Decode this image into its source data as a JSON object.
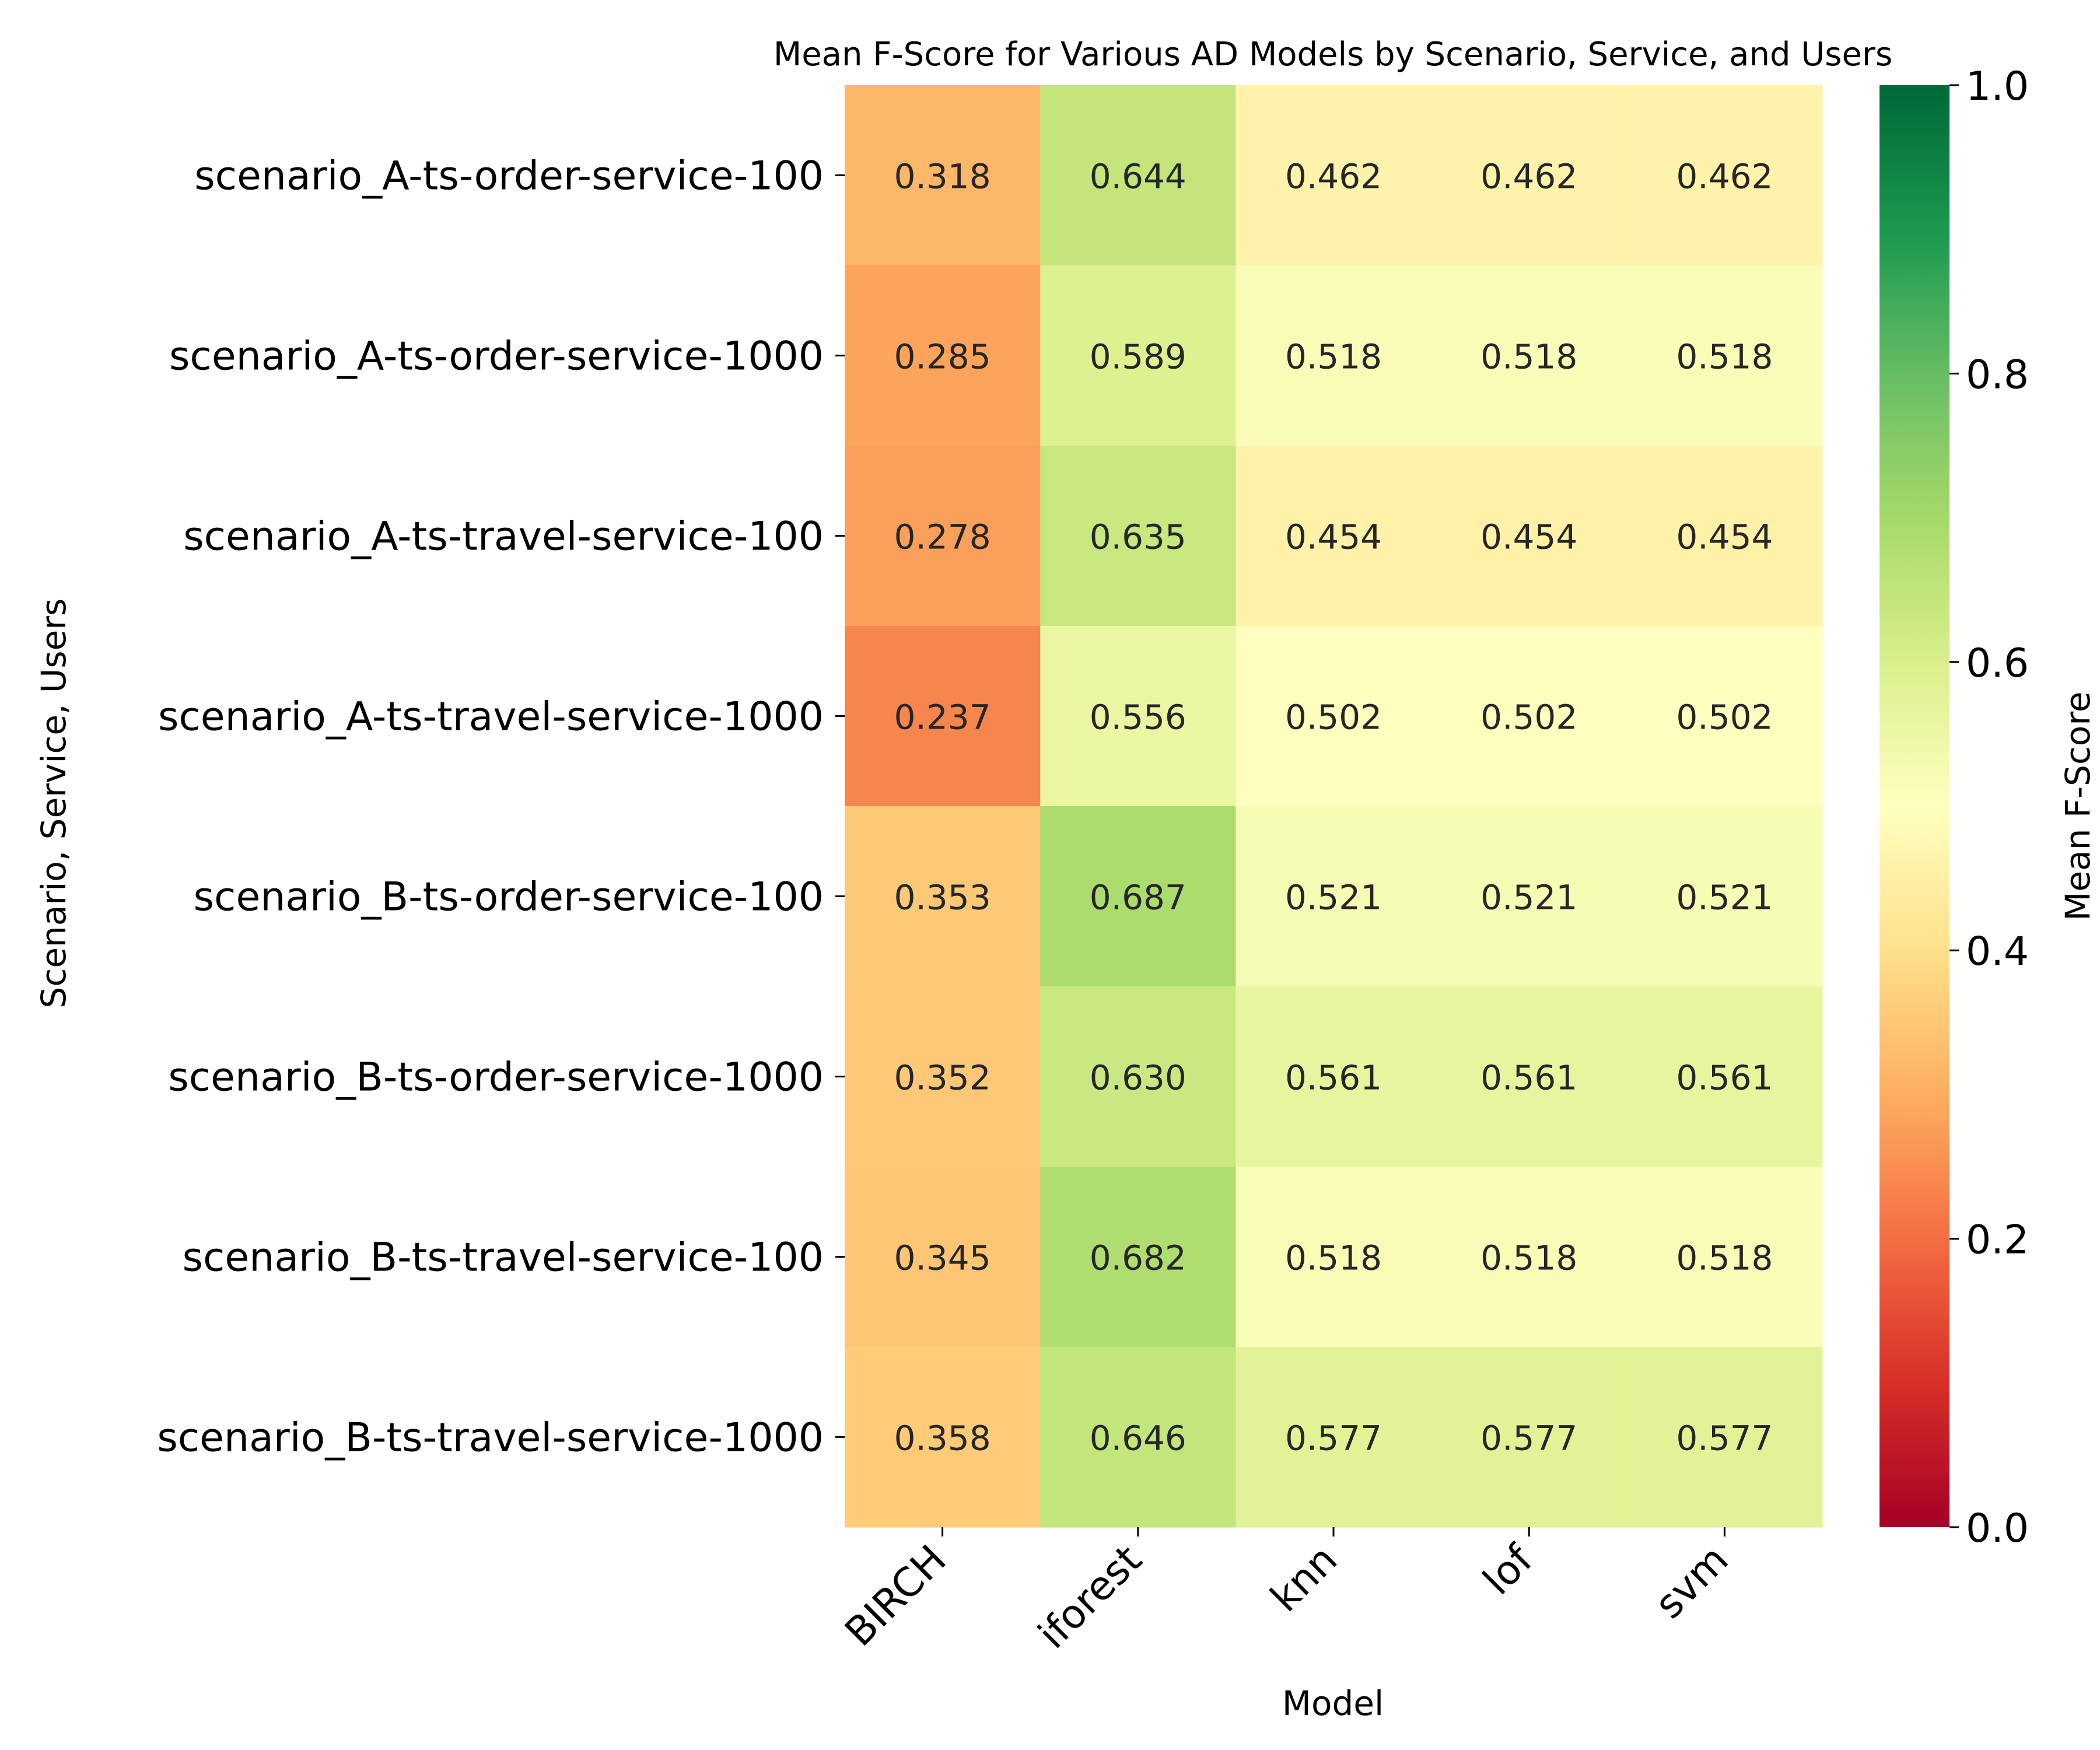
{
  "chart_data": {
    "type": "heatmap",
    "title": "Mean F-Score for Various AD Models by Scenario, Service, and Users",
    "xlabel": "Model",
    "ylabel": "Scenario, Service, Users",
    "x_categories": [
      "BIRCH",
      "iforest",
      "knn",
      "lof",
      "svm"
    ],
    "y_categories": [
      "scenario_A-ts-order-service-100",
      "scenario_A-ts-order-service-1000",
      "scenario_A-ts-travel-service-100",
      "scenario_A-ts-travel-service-1000",
      "scenario_B-ts-order-service-100",
      "scenario_B-ts-order-service-1000",
      "scenario_B-ts-travel-service-100",
      "scenario_B-ts-travel-service-1000"
    ],
    "values": [
      [
        0.318,
        0.644,
        0.462,
        0.462,
        0.462
      ],
      [
        0.285,
        0.589,
        0.518,
        0.518,
        0.518
      ],
      [
        0.278,
        0.635,
        0.454,
        0.454,
        0.454
      ],
      [
        0.237,
        0.556,
        0.502,
        0.502,
        0.502
      ],
      [
        0.353,
        0.687,
        0.521,
        0.521,
        0.521
      ],
      [
        0.352,
        0.63,
        0.561,
        0.561,
        0.561
      ],
      [
        0.345,
        0.682,
        0.518,
        0.518,
        0.518
      ],
      [
        0.358,
        0.646,
        0.577,
        0.577,
        0.577
      ]
    ],
    "value_format": "0.000",
    "colormap": "RdYlGn",
    "colormap_stops": [
      "#a50026",
      "#d73027",
      "#f46d43",
      "#fdae61",
      "#fee08b",
      "#ffffbf",
      "#d9ef8b",
      "#a6d96a",
      "#66bd63",
      "#1a9850",
      "#006837"
    ],
    "colorbar": {
      "label": "Mean F-Score",
      "range": [
        0.0,
        1.0
      ],
      "ticks": [
        "0.0",
        "0.2",
        "0.4",
        "0.6",
        "0.8",
        "1.0"
      ]
    },
    "grid": false
  }
}
